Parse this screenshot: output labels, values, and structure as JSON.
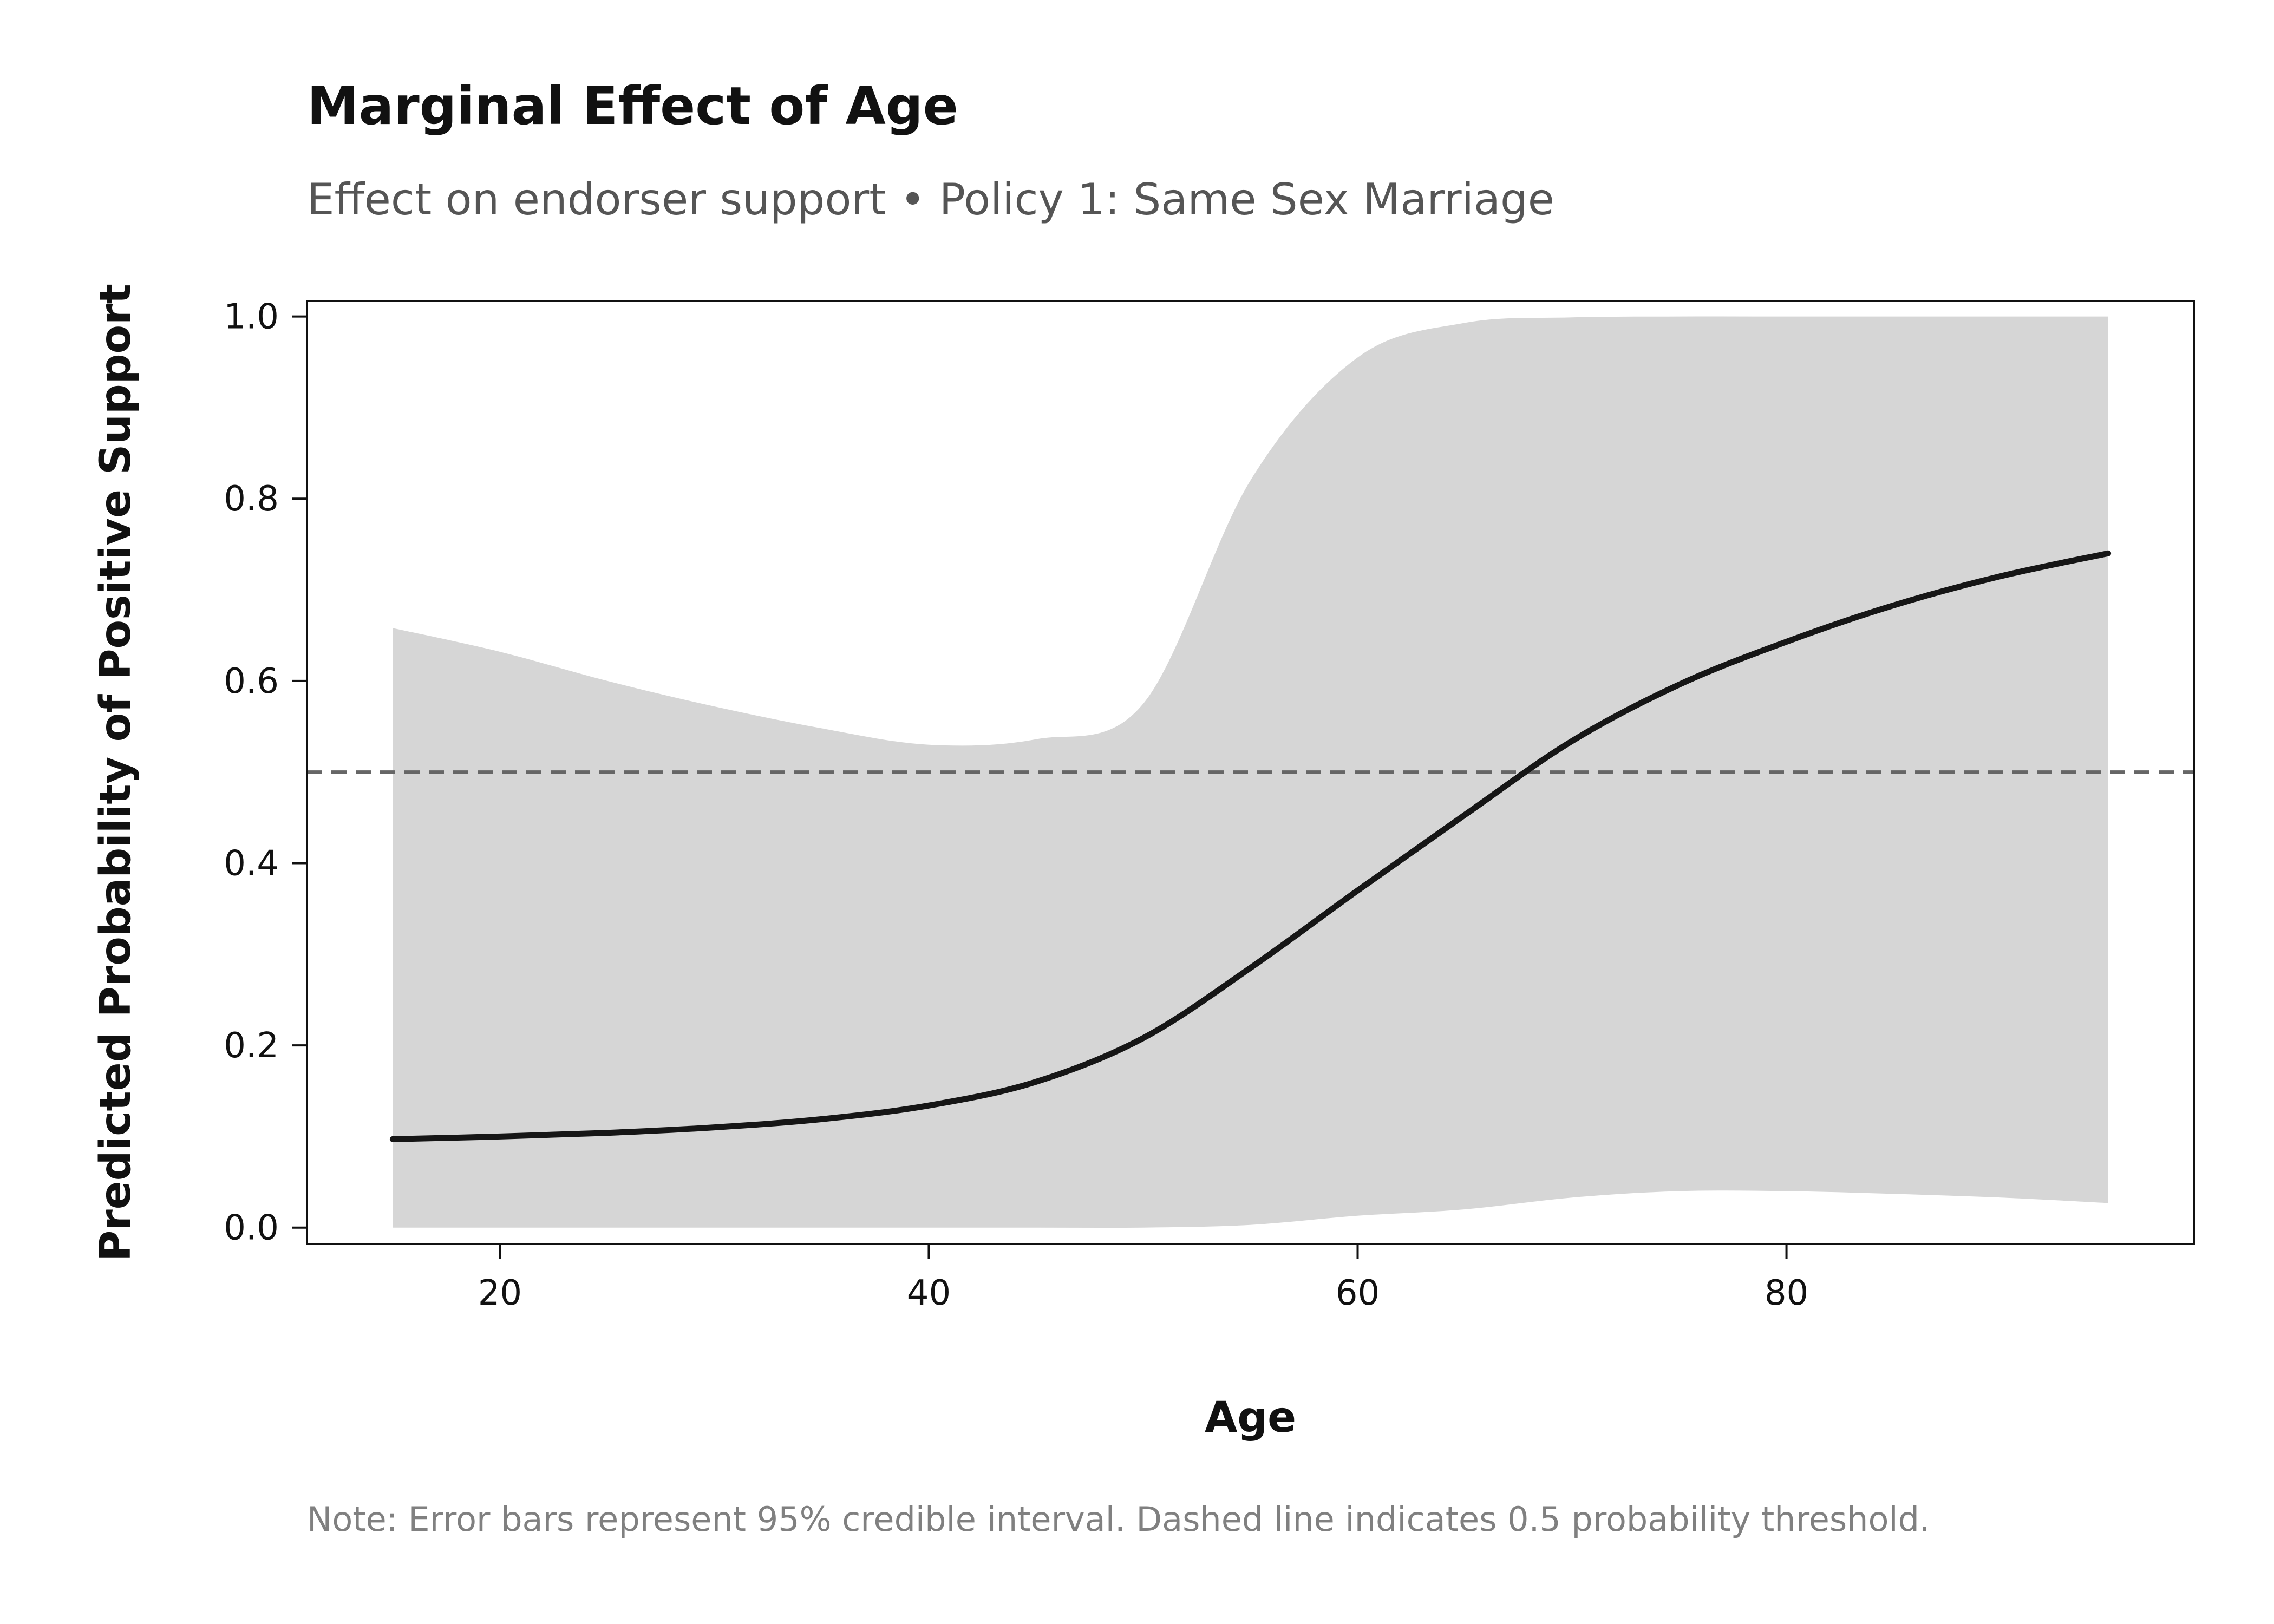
{
  "title": "Marginal Effect of Age",
  "subtitle": "Effect on endorser support • Policy 1: Same Sex Marriage",
  "note": "Note: Error bars represent 95% credible interval. Dashed line indicates 0.5 probability threshold.",
  "colors": {
    "line": "#161616",
    "band": "#d6d6d6",
    "threshold": "#666666",
    "axis": "#111111"
  },
  "chart_data": {
    "type": "line",
    "xlabel": "Age",
    "ylabel": "Predicted Probability of Positive Support",
    "xlim": [
      11,
      99
    ],
    "ylim": [
      -0.018,
      1.017
    ],
    "xticks": [
      20,
      40,
      60,
      80
    ],
    "yticks": [
      0.0,
      0.2,
      0.4,
      0.6,
      0.8,
      1.0
    ],
    "xtick_labels": [
      "20",
      "40",
      "60",
      "80"
    ],
    "ytick_labels": [
      "0.0",
      "0.2",
      "0.4",
      "0.6",
      "0.8",
      "1.0"
    ],
    "threshold": 0.5,
    "grid": false,
    "series": [
      {
        "x": [
          15,
          20,
          25,
          30,
          35,
          40,
          45,
          50,
          55,
          60,
          65,
          70,
          75,
          80,
          85,
          90,
          95
        ],
        "y": [
          0.097,
          0.1,
          0.104,
          0.11,
          0.119,
          0.134,
          0.16,
          0.208,
          0.285,
          0.37,
          0.453,
          0.534,
          0.596,
          0.643,
          0.683,
          0.715,
          0.74
        ],
        "lower": [
          0.0,
          0.0,
          0.0,
          0.0,
          0.0,
          0.0,
          0.0,
          0.0,
          0.003,
          0.013,
          0.02,
          0.033,
          0.04,
          0.04,
          0.037,
          0.033,
          0.027
        ],
        "upper": [
          0.658,
          0.632,
          0.6,
          0.572,
          0.548,
          0.53,
          0.536,
          0.575,
          0.82,
          0.955,
          0.993,
          0.999,
          1.0,
          1.0,
          1.0,
          1.0,
          1.0
        ]
      }
    ]
  }
}
